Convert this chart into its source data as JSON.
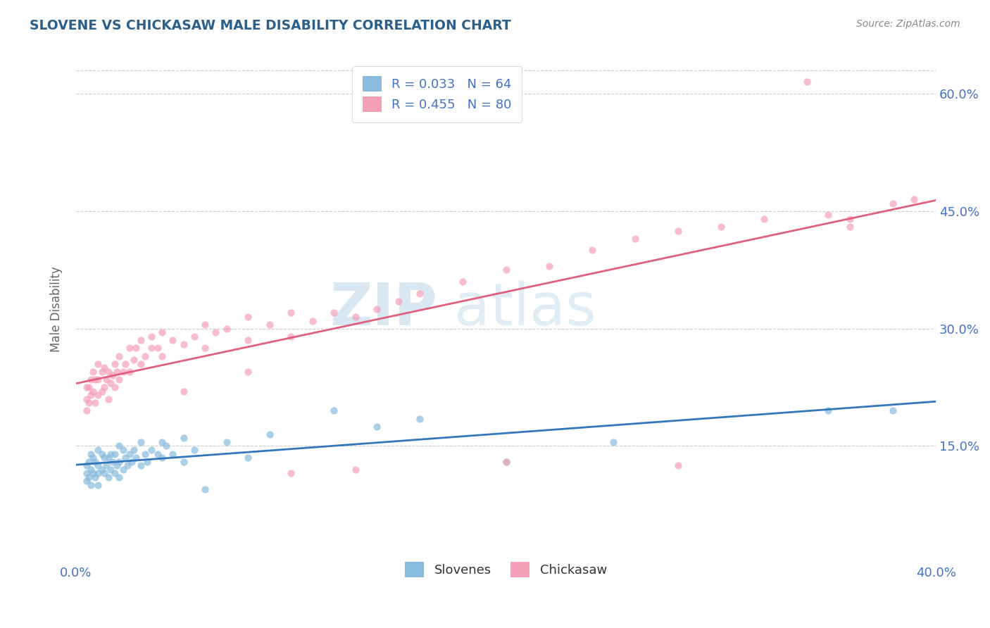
{
  "title": "SLOVENE VS CHICKASAW MALE DISABILITY CORRELATION CHART",
  "source": "Source: ZipAtlas.com",
  "ylabel": "Male Disability",
  "y_ticks_right": [
    "15.0%",
    "30.0%",
    "45.0%",
    "60.0%"
  ],
  "y_tick_vals": [
    0.15,
    0.3,
    0.45,
    0.6
  ],
  "legend_slovene_R": "R = 0.033",
  "legend_slovene_N": "N = 64",
  "legend_chickasaw_R": "R = 0.455",
  "legend_chickasaw_N": "N = 80",
  "watermark": "ZIPatlas",
  "slovene_color": "#88bbdd",
  "chickasaw_color": "#f4a0b8",
  "slovene_line_color": "#3377bb",
  "chickasaw_line_color": "#e06080",
  "background_color": "#ffffff",
  "grid_color": "#cccccc",
  "title_color": "#2c5f8a",
  "axis_color": "#4472c4",
  "xlim": [
    0.0,
    0.4
  ],
  "ylim": [
    0.0,
    0.65
  ],
  "slovene_scatter_x": [
    0.005,
    0.005,
    0.005,
    0.006,
    0.006,
    0.007,
    0.007,
    0.007,
    0.008,
    0.008,
    0.009,
    0.009,
    0.01,
    0.01,
    0.01,
    0.01,
    0.012,
    0.012,
    0.013,
    0.013,
    0.014,
    0.015,
    0.015,
    0.016,
    0.016,
    0.017,
    0.018,
    0.018,
    0.019,
    0.02,
    0.02,
    0.02,
    0.022,
    0.022,
    0.023,
    0.024,
    0.025,
    0.026,
    0.027,
    0.028,
    0.03,
    0.03,
    0.032,
    0.033,
    0.035,
    0.038,
    0.04,
    0.04,
    0.042,
    0.045,
    0.05,
    0.05,
    0.055,
    0.06,
    0.07,
    0.08,
    0.09,
    0.12,
    0.14,
    0.16,
    0.2,
    0.25,
    0.35,
    0.38
  ],
  "slovene_scatter_y": [
    0.105,
    0.115,
    0.125,
    0.11,
    0.13,
    0.1,
    0.12,
    0.14,
    0.115,
    0.135,
    0.11,
    0.13,
    0.1,
    0.115,
    0.125,
    0.145,
    0.12,
    0.14,
    0.115,
    0.135,
    0.125,
    0.11,
    0.135,
    0.12,
    0.14,
    0.13,
    0.115,
    0.14,
    0.125,
    0.11,
    0.13,
    0.15,
    0.12,
    0.145,
    0.135,
    0.125,
    0.14,
    0.13,
    0.145,
    0.135,
    0.125,
    0.155,
    0.14,
    0.13,
    0.145,
    0.14,
    0.135,
    0.155,
    0.15,
    0.14,
    0.13,
    0.16,
    0.145,
    0.095,
    0.155,
    0.135,
    0.165,
    0.195,
    0.175,
    0.185,
    0.13,
    0.155,
    0.195,
    0.195
  ],
  "chickasaw_scatter_x": [
    0.005,
    0.005,
    0.005,
    0.006,
    0.006,
    0.007,
    0.007,
    0.008,
    0.008,
    0.009,
    0.009,
    0.01,
    0.01,
    0.01,
    0.012,
    0.012,
    0.013,
    0.013,
    0.014,
    0.015,
    0.015,
    0.016,
    0.017,
    0.018,
    0.018,
    0.019,
    0.02,
    0.02,
    0.022,
    0.023,
    0.025,
    0.025,
    0.027,
    0.028,
    0.03,
    0.03,
    0.032,
    0.035,
    0.035,
    0.038,
    0.04,
    0.04,
    0.045,
    0.05,
    0.055,
    0.06,
    0.06,
    0.065,
    0.07,
    0.08,
    0.08,
    0.09,
    0.1,
    0.1,
    0.11,
    0.12,
    0.13,
    0.14,
    0.15,
    0.16,
    0.18,
    0.2,
    0.22,
    0.24,
    0.26,
    0.28,
    0.3,
    0.32,
    0.35,
    0.36,
    0.36,
    0.38,
    0.39,
    0.05,
    0.08,
    0.1,
    0.13,
    0.2,
    0.28,
    0.34
  ],
  "chickasaw_scatter_y": [
    0.195,
    0.21,
    0.225,
    0.205,
    0.225,
    0.215,
    0.235,
    0.22,
    0.245,
    0.205,
    0.235,
    0.215,
    0.235,
    0.255,
    0.22,
    0.245,
    0.225,
    0.25,
    0.235,
    0.21,
    0.245,
    0.23,
    0.24,
    0.225,
    0.255,
    0.245,
    0.235,
    0.265,
    0.245,
    0.255,
    0.245,
    0.275,
    0.26,
    0.275,
    0.255,
    0.285,
    0.265,
    0.275,
    0.29,
    0.275,
    0.265,
    0.295,
    0.285,
    0.28,
    0.29,
    0.275,
    0.305,
    0.295,
    0.3,
    0.285,
    0.315,
    0.305,
    0.29,
    0.32,
    0.31,
    0.32,
    0.315,
    0.325,
    0.335,
    0.345,
    0.36,
    0.375,
    0.38,
    0.4,
    0.415,
    0.425,
    0.43,
    0.44,
    0.445,
    0.44,
    0.43,
    0.46,
    0.465,
    0.22,
    0.245,
    0.115,
    0.12,
    0.13,
    0.125,
    0.615
  ]
}
